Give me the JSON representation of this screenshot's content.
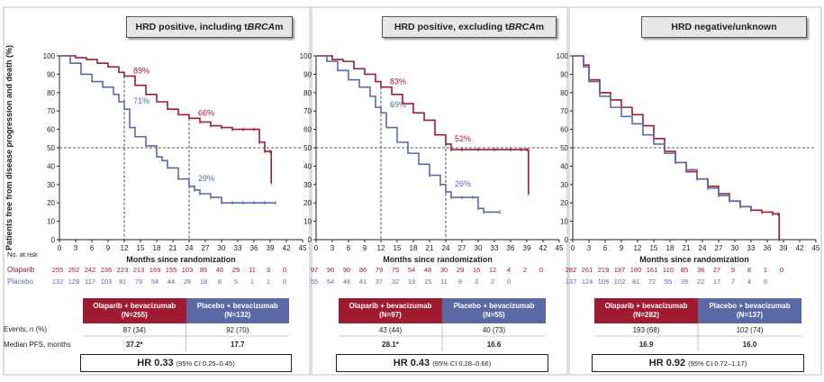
{
  "colors": {
    "olaparib": "#9e1b32",
    "placebo": "#5b6aa5",
    "ola_header": "#9e1b32",
    "pla_header": "#5b6aa5"
  },
  "y_axis_label": "Patients free from disease progression and death (%)",
  "risk_header": "No. at risk",
  "risk_labels": {
    "olaparib": "Olaparib",
    "placebo": "Placebo"
  },
  "row_labels": {
    "events": "Events, n (%)",
    "pfs": "Median PFS, months"
  },
  "panels": [
    {
      "title_pre": "HRD positive, including t",
      "title_em": "BRCA",
      "title_post": "m",
      "xlabel": "Months since randomization",
      "ola_header_line1": "Olaparib + bevacizumab",
      "ola_header_line2": "(N=255)",
      "pla_header_line1": "Placebo + bevacizumab",
      "pla_header_line2": "(N=132)",
      "ola_events": "87 (34)",
      "pla_events": "92 (70)",
      "ola_pfs": "37.2*",
      "pla_pfs": "17.7",
      "hr_value": "HR 0.33",
      "hr_ci": "(95% CI 0.25–0.45)",
      "risk_ola": [
        "255",
        "252",
        "242",
        "236",
        "223",
        "213",
        "169",
        "155",
        "103",
        "85",
        "46",
        "29",
        "11",
        "3",
        "0"
      ],
      "risk_pla": [
        "132",
        "128",
        "117",
        "103",
        "91",
        "79",
        "54",
        "44",
        "28",
        "18",
        "8",
        "5",
        "1",
        "1",
        "0"
      ]
    },
    {
      "title_pre": "HRD positive, excluding t",
      "title_em": "BRCA",
      "title_post": "m",
      "xlabel": "Months since randomization",
      "ola_header_line1": "Olaparib + bevacizumab",
      "ola_header_line2": "(N=97)",
      "pla_header_line1": "Placebo + bevacizumab",
      "pla_header_line2": "(N=55)",
      "ola_events": "43 (44)",
      "pla_events": "40 (73)",
      "ola_pfs": "28.1*",
      "pla_pfs": "16.6",
      "hr_value": "HR 0.43",
      "hr_ci": "(95% CI 0.28–0.66)",
      "risk_ola": [
        "97",
        "96",
        "90",
        "86",
        "79",
        "75",
        "54",
        "48",
        "30",
        "29",
        "16",
        "12",
        "4",
        "2",
        "0"
      ],
      "risk_pla": [
        "55",
        "54",
        "48",
        "41",
        "37",
        "32",
        "19",
        "15",
        "11",
        "8",
        "3",
        "2",
        "0"
      ]
    },
    {
      "title_pre": "HRD negative/unknown",
      "title_em": "",
      "title_post": "",
      "xlabel": "Months since randomization",
      "ola_header_line1": "Olaparib + bevacizumab",
      "ola_header_line2": "(N=282)",
      "pla_header_line1": "Placebo + bevacizumab",
      "pla_header_line2": "(N=137)",
      "ola_events": "193 (68)",
      "pla_events": "102 (74)",
      "ola_pfs": "16.9",
      "pla_pfs": "16.0",
      "hr_value": "HR 0.92",
      "hr_ci": "(95% CI 0.72–1.17)",
      "risk_ola": [
        "282",
        "261",
        "219",
        "197",
        "180",
        "161",
        "110",
        "85",
        "38",
        "27",
        "9",
        "8",
        "1",
        "0"
      ],
      "risk_pla": [
        "137",
        "124",
        "109",
        "102",
        "81",
        "72",
        "55",
        "39",
        "22",
        "17",
        "7",
        "4",
        "0"
      ]
    }
  ],
  "chart_data": [
    {
      "type": "line",
      "title": "HRD positive, including tBRCAm",
      "xlabel": "Months since randomization",
      "ylabel": "Patients free from disease progression and death (%)",
      "xlim": [
        0,
        45
      ],
      "ylim": [
        0,
        100
      ],
      "xticks": [
        0,
        3,
        6,
        9,
        12,
        15,
        18,
        21,
        24,
        27,
        30,
        33,
        36,
        39,
        42,
        45
      ],
      "yticks": [
        0,
        10,
        20,
        30,
        40,
        50,
        60,
        70,
        80,
        90,
        100
      ],
      "reference_line_y": 50,
      "landmarks": [
        12,
        24
      ],
      "annotations": [
        {
          "text": "89%",
          "series": "olaparib",
          "x": 12,
          "y": 89
        },
        {
          "text": "71%",
          "series": "placebo",
          "x": 12,
          "y": 71
        },
        {
          "text": "66%",
          "series": "olaparib",
          "x": 24,
          "y": 66
        },
        {
          "text": "29%",
          "series": "placebo",
          "x": 24,
          "y": 29
        }
      ],
      "series": [
        {
          "key": "olaparib",
          "x": [
            0,
            3,
            5,
            7,
            9,
            11,
            12,
            14,
            16,
            18,
            20,
            22,
            24,
            26,
            28,
            30,
            32,
            34,
            36,
            37,
            38,
            39,
            39.2
          ],
          "y": [
            100,
            99,
            98,
            96,
            94,
            91,
            89,
            84,
            79,
            75,
            71,
            68,
            66,
            64,
            62,
            61,
            60,
            60,
            60,
            53,
            48,
            48,
            31
          ]
        },
        {
          "key": "placebo",
          "x": [
            0,
            2,
            4,
            6,
            8,
            10,
            11,
            12,
            13,
            14,
            16,
            18,
            19,
            20,
            22,
            24,
            25,
            26,
            28,
            30,
            32,
            34,
            36,
            38,
            40
          ],
          "y": [
            100,
            96,
            90,
            86,
            83,
            79,
            75,
            71,
            61,
            56,
            51,
            45,
            43,
            39,
            33,
            29,
            27,
            25,
            23,
            20,
            20,
            20,
            20,
            20,
            20
          ]
        }
      ]
    },
    {
      "type": "line",
      "title": "HRD positive, excluding tBRCAm",
      "xlabel": "Months since randomization",
      "ylabel": "Patients free from disease progression and death (%)",
      "xlim": [
        0,
        45
      ],
      "ylim": [
        0,
        100
      ],
      "xticks": [
        0,
        3,
        6,
        9,
        12,
        15,
        18,
        21,
        24,
        27,
        30,
        33,
        36,
        39,
        42,
        45
      ],
      "yticks": [
        0,
        10,
        20,
        30,
        40,
        50,
        60,
        70,
        80,
        90,
        100
      ],
      "reference_line_y": 50,
      "landmarks": [
        12,
        24
      ],
      "annotations": [
        {
          "text": "83%",
          "series": "olaparib",
          "x": 12,
          "y": 83
        },
        {
          "text": "69%",
          "series": "placebo",
          "x": 12,
          "y": 69
        },
        {
          "text": "52%",
          "series": "olaparib",
          "x": 24,
          "y": 52
        },
        {
          "text": "26%",
          "series": "placebo",
          "x": 24,
          "y": 26
        }
      ],
      "series": [
        {
          "key": "olaparib",
          "x": [
            0,
            3,
            5,
            7,
            9,
            11,
            12,
            14,
            16,
            18,
            20,
            22,
            24,
            25,
            27,
            30,
            33,
            36,
            38,
            39,
            39.3
          ],
          "y": [
            100,
            98,
            97,
            93,
            90,
            86,
            83,
            79,
            74,
            69,
            65,
            57,
            52,
            49,
            49,
            49,
            49,
            49,
            49,
            49,
            25
          ]
        },
        {
          "key": "placebo",
          "x": [
            0,
            2,
            4,
            6,
            8,
            10,
            11,
            12,
            13,
            15,
            17,
            19,
            21,
            23,
            24,
            25,
            27,
            29,
            30,
            31,
            34
          ],
          "y": [
            100,
            97,
            92,
            87,
            83,
            78,
            72,
            69,
            61,
            53,
            47,
            41,
            35,
            30,
            26,
            23,
            23,
            23,
            17,
            15,
            15
          ]
        }
      ]
    },
    {
      "type": "line",
      "title": "HRD negative/unknown",
      "xlabel": "Months since randomization",
      "ylabel": "Patients free from disease progression and death (%)",
      "xlim": [
        0,
        45
      ],
      "ylim": [
        0,
        100
      ],
      "xticks": [
        0,
        3,
        6,
        9,
        12,
        15,
        18,
        21,
        24,
        27,
        30,
        33,
        36,
        39,
        42,
        45
      ],
      "yticks": [
        0,
        10,
        20,
        30,
        40,
        50,
        60,
        70,
        80,
        90,
        100
      ],
      "reference_line_y": 50,
      "landmarks": [],
      "annotations": [],
      "series": [
        {
          "key": "olaparib",
          "x": [
            0,
            2,
            3,
            5,
            7,
            9,
            11,
            13,
            15,
            17,
            19,
            21,
            23,
            25,
            27,
            29,
            31,
            33,
            35,
            37,
            38,
            38.2
          ],
          "y": [
            100,
            95,
            87,
            80,
            76,
            72,
            68,
            62,
            55,
            48,
            42,
            37,
            33,
            29,
            25,
            21,
            18,
            16,
            15,
            14,
            14,
            0
          ]
        },
        {
          "key": "placebo",
          "x": [
            0,
            2,
            3,
            5,
            7,
            9,
            11,
            13,
            15,
            17,
            19,
            21,
            23,
            25,
            27,
            29,
            31,
            33
          ],
          "y": [
            100,
            94,
            86,
            78,
            72,
            67,
            63,
            57,
            52,
            47,
            42,
            38,
            33,
            28,
            24,
            21,
            18,
            17
          ]
        }
      ]
    }
  ]
}
